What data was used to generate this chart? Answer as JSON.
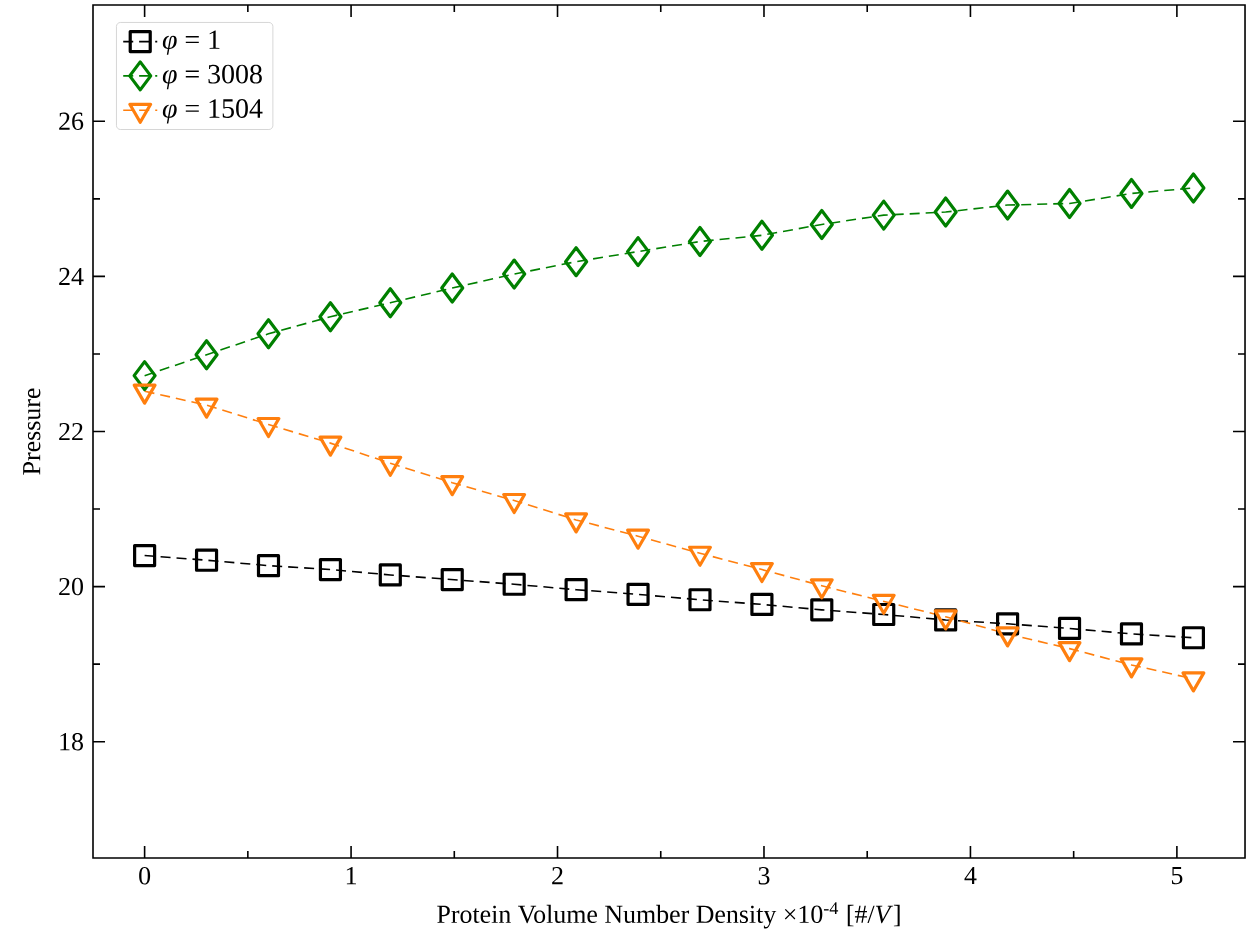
{
  "chart_data": {
    "type": "line",
    "xlabel": "Protein Volume Number Density ×10$^{-4}$ [#/*V*]",
    "ylabel": "Pressure",
    "x": [
      0,
      0.3,
      0.6,
      0.9,
      1.19,
      1.49,
      1.79,
      2.09,
      2.39,
      2.69,
      2.99,
      3.28,
      3.58,
      3.88,
      4.18,
      4.48,
      4.78,
      5.08
    ],
    "series": [
      {
        "name": "*φ* = 1",
        "color": "#000000",
        "marker": "square",
        "values": [
          20.4,
          20.34,
          20.27,
          20.22,
          20.15,
          20.09,
          20.03,
          19.96,
          19.9,
          19.83,
          19.77,
          19.7,
          19.64,
          19.57,
          19.52,
          19.46,
          19.39,
          19.34
        ]
      },
      {
        "name": "*φ* = 3008",
        "color": "#008000",
        "marker": "diamond",
        "values": [
          22.72,
          22.99,
          23.26,
          23.48,
          23.66,
          23.85,
          24.03,
          24.19,
          24.32,
          24.45,
          24.53,
          24.67,
          24.79,
          24.83,
          24.92,
          24.94,
          25.07,
          25.14
        ]
      },
      {
        "name": "*φ* = 1504",
        "color": "#ff7f0e",
        "marker": "triangle",
        "values": [
          22.52,
          22.34,
          22.09,
          21.85,
          21.59,
          21.34,
          21.11,
          20.86,
          20.65,
          20.43,
          20.22,
          20.01,
          19.81,
          19.61,
          19.39,
          19.2,
          18.99,
          18.81
        ]
      }
    ],
    "xlim": [
      -0.25,
      5.33
    ],
    "ylim": [
      16.5,
      27.5
    ],
    "xticks": [
      0,
      1,
      2,
      3,
      4,
      5
    ],
    "yticks": [
      18,
      20,
      22,
      24,
      26
    ],
    "grid": false,
    "legend": "top left",
    "line_style": "dashed"
  }
}
